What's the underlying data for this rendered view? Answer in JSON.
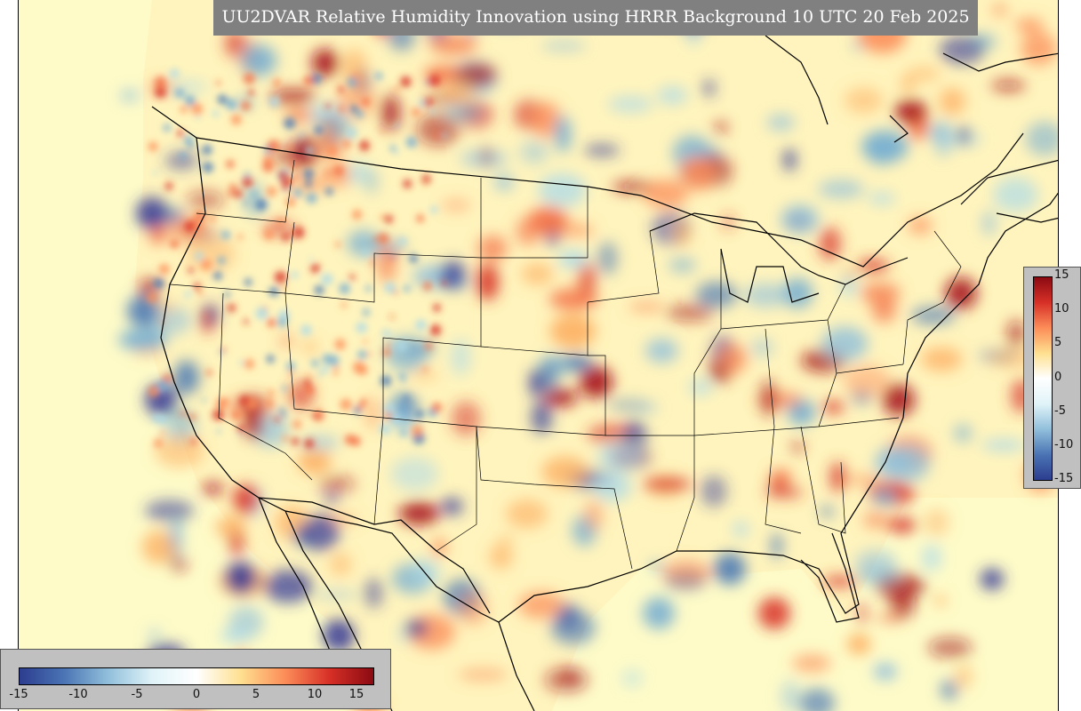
{
  "title": "UU2DVAR Relative Humidity Innovation using HRRR Background 10 UTC 20 Feb 2025",
  "colorbar": {
    "min": -15,
    "max": 15,
    "vertical_ticks": [
      "15",
      "10",
      "5",
      "0",
      "-5",
      "-10",
      "-15"
    ],
    "horizontal_ticks": [
      "-15",
      "-10",
      "-5",
      "0",
      "5",
      "10",
      "15"
    ],
    "stops": [
      "#2c3d8f",
      "#4a74b4",
      "#91bfdb",
      "#e0f3f8",
      "#ffffff",
      "#fee090",
      "#fc8d59",
      "#d73027",
      "#8b0a12"
    ]
  },
  "colors": {
    "background": "#fefbc8",
    "positive": "#d73027",
    "negative": "#4575b4",
    "boundary": "#000000"
  }
}
